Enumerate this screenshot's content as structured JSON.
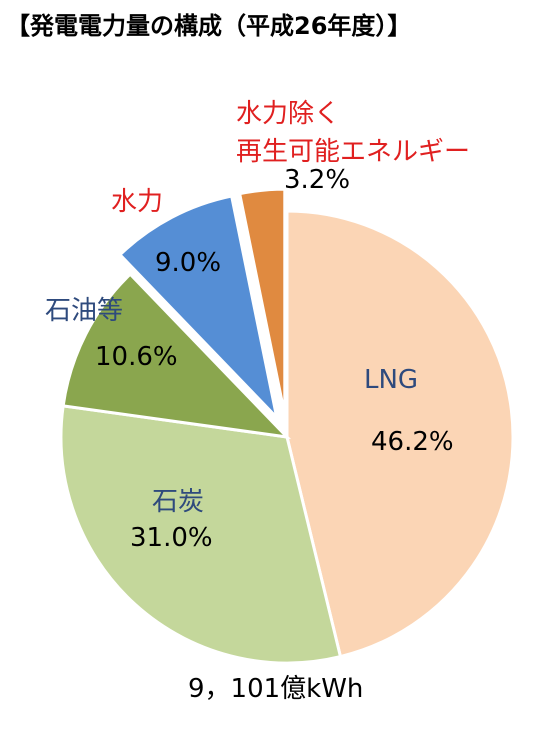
{
  "chart_data": {
    "type": "pie",
    "title": "【発電電力量の構成（平成26年度）】",
    "total_label": "9，101億kWh",
    "slices": [
      {
        "name": "LNG",
        "value": 46.2,
        "value_label": "46.2%",
        "color": "#fbd5b5",
        "name_color": "#2e4a7d",
        "exploded": false
      },
      {
        "name": "石炭",
        "value": 31.0,
        "value_label": "31.0%",
        "color": "#c4d79b",
        "name_color": "#2e4a7d",
        "exploded": false
      },
      {
        "name": "石油等",
        "value": 10.6,
        "value_label": "10.6%",
        "color": "#8aa64e",
        "name_color": "#2e4a7d",
        "exploded": false
      },
      {
        "name": "水力",
        "value": 9.0,
        "value_label": "9.0%",
        "color": "#558ed5",
        "name_color": "#e02020",
        "exploded": true
      },
      {
        "name": "水力除く\n再生可能エネルギー",
        "value": 3.2,
        "value_label": "3.2%",
        "color": "#e08a40",
        "name_color": "#e02020",
        "exploded": true
      }
    ]
  }
}
